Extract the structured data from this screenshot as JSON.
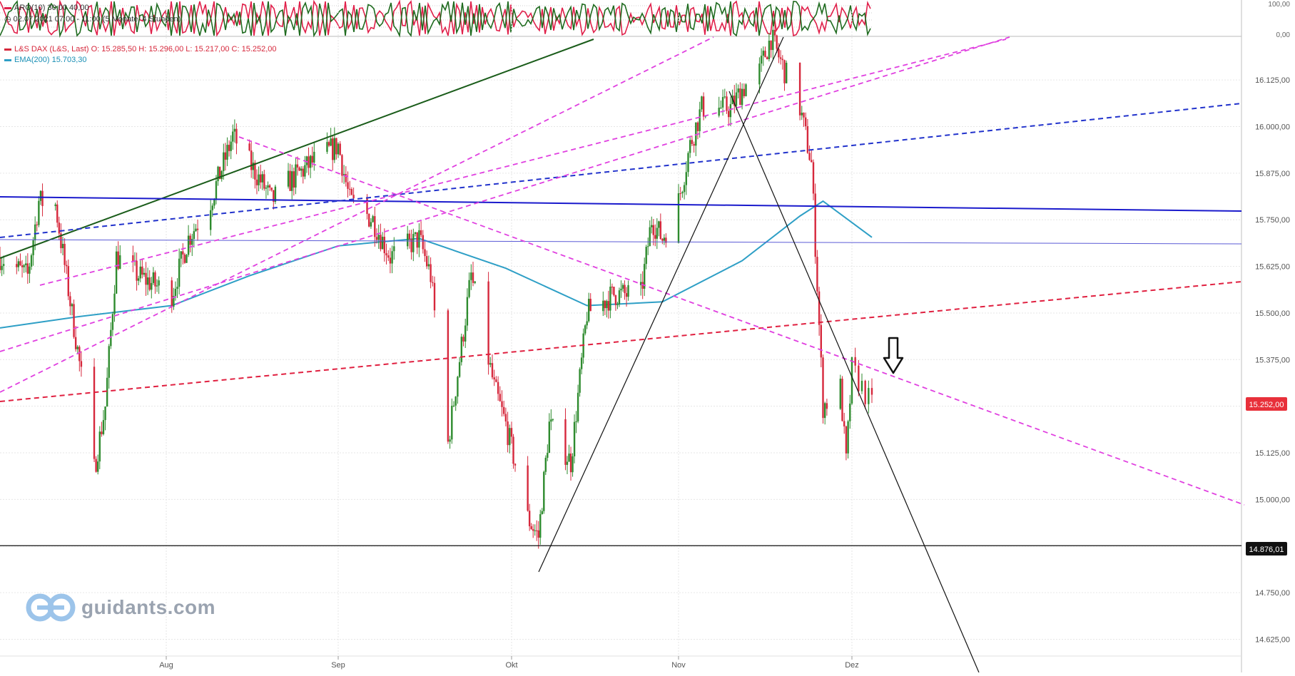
{
  "legend": {
    "aro": "ARO(10)  30,00  40,00",
    "period": "02.07.2021 07:00 - 11:00  (5 Monate, 4 Stunden)",
    "dax": "L&S DAX (L&S, Last)  O: 15.285,50  H: 15.296,00  L: 15.217,00  C: 15.252,00",
    "ema": "EMA(200)  15.703,30"
  },
  "watermark": "guidants.com",
  "colors": {
    "up": "#2e8b2e",
    "down": "#d6283c",
    "ema": "#2e9fc6",
    "aro_up": "#1f6b1f",
    "aro_down": "#e0204a",
    "current_price_tag": "#e8303a",
    "support_tag": "#111111"
  },
  "chart_data": {
    "type": "candlestick",
    "title": "L&S DAX (L&S, Last)",
    "x_tick_labels": [
      "Aug",
      "Sep",
      "Okt",
      "Nov",
      "Dez"
    ],
    "y_tick_labels": [
      "16.125,00",
      "16.000,00",
      "15.875,00",
      "15.750,00",
      "15.625,00",
      "15.500,00",
      "15.375,00",
      "15.125,00",
      "15.000,00",
      "14.750,00",
      "14.625,00"
    ],
    "indicator_axis_labels": [
      "100,00",
      "0,00"
    ],
    "ylim": [
      14580,
      16240
    ],
    "last_price": {
      "value": 15252,
      "label": "15.252,00"
    },
    "support_level": {
      "value": 14876.01,
      "label": "14.876,01"
    },
    "ema200_last": 15703.3,
    "ohlc_last": {
      "open": 15285.5,
      "high": 15296,
      "low": 15217,
      "close": 15252
    },
    "close_path": [
      [
        "Jul 2",
        15650
      ],
      [
        "Jul 7",
        15600
      ],
      [
        "Jul 9",
        15800
      ],
      [
        "Jul 12",
        15790
      ],
      [
        "Jul 16",
        15400
      ],
      [
        "Jul 19",
        15080
      ],
      [
        "Jul 21",
        15250
      ],
      [
        "Jul 23",
        15650
      ],
      [
        "Jul 27",
        15600
      ],
      [
        "Aug 2",
        15550
      ],
      [
        "Aug 5",
        15700
      ],
      [
        "Aug 9",
        15800
      ],
      [
        "Aug 12",
        15930
      ],
      [
        "Aug 13",
        15975
      ],
      [
        "Aug 19",
        15830
      ],
      [
        "Aug 20",
        15800
      ],
      [
        "Aug 23",
        15850
      ],
      [
        "Aug 27",
        15900
      ],
      [
        "Sep 1",
        15950
      ],
      [
        "Sep 3",
        15800
      ],
      [
        "Sep 7",
        15750
      ],
      [
        "Sep 10",
        15650
      ],
      [
        "Sep 15",
        15700
      ],
      [
        "Sep 17",
        15600
      ],
      [
        "Sep 20",
        15150
      ],
      [
        "Sep 24",
        15600
      ],
      [
        "Sep 28",
        15300
      ],
      [
        "Sep 30",
        15200
      ],
      [
        "Oct 4",
        14950
      ],
      [
        "Oct 6",
        14900
      ],
      [
        "Oct 8",
        15200
      ],
      [
        "Oct 12",
        15100
      ],
      [
        "Oct 15",
        15500
      ],
      [
        "Oct 20",
        15550
      ],
      [
        "Oct 25",
        15550
      ],
      [
        "Oct 27",
        15750
      ],
      [
        "Oct 29",
        15700
      ],
      [
        "Nov 1",
        15800
      ],
      [
        "Nov 3",
        15950
      ],
      [
        "Nov 5",
        16050
      ],
      [
        "Nov 10",
        16050
      ],
      [
        "Nov 12",
        16100
      ],
      [
        "Nov 15",
        16150
      ],
      [
        "Nov 17",
        16240
      ],
      [
        "Nov 18",
        16200
      ],
      [
        "Nov 22",
        16050
      ],
      [
        "Nov 24",
        15900
      ],
      [
        "Nov 26",
        15250
      ],
      [
        "Nov 29",
        15300
      ],
      [
        "Nov 30",
        15100
      ],
      [
        "Dec 1",
        15350
      ],
      [
        "Dec 3",
        15252
      ]
    ],
    "ema_path": [
      [
        "Jul 2",
        15460
      ],
      [
        "Jul 16",
        15490
      ],
      [
        "Aug 2",
        15520
      ],
      [
        "Aug 16",
        15600
      ],
      [
        "Sep 1",
        15680
      ],
      [
        "Sep 15",
        15700
      ],
      [
        "Sep 30",
        15620
      ],
      [
        "Oct 15",
        15520
      ],
      [
        "Oct 29",
        15530
      ],
      [
        "Nov 12",
        15640
      ],
      [
        "Nov 22",
        15760
      ],
      [
        "Nov 26",
        15800
      ],
      [
        "Dec 3",
        15703
      ]
    ],
    "drawn_lines": [
      {
        "kind": "horizontal",
        "value": 14876.01,
        "color": "#111111"
      },
      {
        "kind": "trendline",
        "color": "#1a5c1a",
        "style": "solid"
      },
      {
        "kind": "trendline",
        "color": "#1a1acc",
        "style": "solid"
      },
      {
        "kind": "trendline",
        "color": "#5b5bd6",
        "style": "solid"
      },
      {
        "kind": "trendline",
        "color": "#2233cc",
        "style": "dashed"
      },
      {
        "kind": "trendline",
        "color": "#e02040",
        "style": "dashed"
      },
      {
        "kind": "trendline",
        "color": "#e040e0",
        "style": "dashed"
      },
      {
        "kind": "trendline",
        "color": "#111111",
        "style": "solid"
      }
    ],
    "grid": true
  }
}
